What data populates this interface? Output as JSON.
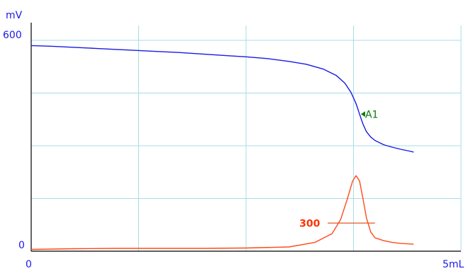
{
  "chart_data": {
    "type": "line",
    "x_unit_label": "mL",
    "y_unit_label": "mV",
    "y_top_label": "600",
    "y_bottom_label": "0",
    "x_left_label": "0",
    "x_right_label": "5mL",
    "xlim": [
      0,
      5
    ],
    "ylim": [
      0,
      600
    ],
    "grid": true,
    "colors": {
      "potential": "#1a1ae6",
      "derivative": "#ff4a1a",
      "grid": "#a8dce6",
      "marker": "#0a7a0a",
      "threshold": "#e8542a"
    },
    "series": [
      {
        "key": "potential",
        "x": [
          0,
          0.25,
          0.5,
          0.75,
          1.0,
          1.25,
          1.5,
          1.75,
          2.0,
          2.25,
          2.5,
          2.75,
          3.0,
          3.2,
          3.4,
          3.55,
          3.65,
          3.72,
          3.78,
          3.82,
          3.86,
          3.9,
          3.95,
          4.0,
          4.1,
          4.2,
          4.3,
          4.4,
          4.45
        ],
        "values": [
          585,
          583,
          580,
          577,
          574,
          571,
          568,
          565,
          561,
          557,
          553,
          548,
          540,
          532,
          518,
          500,
          478,
          452,
          420,
          390,
          362,
          340,
          325,
          315,
          303,
          296,
          290,
          285,
          282
        ]
      },
      {
        "key": "derivative",
        "x": [
          0,
          0.5,
          1.0,
          1.5,
          2.0,
          2.5,
          3.0,
          3.3,
          3.5,
          3.6,
          3.68,
          3.74,
          3.78,
          3.82,
          3.86,
          3.9,
          3.95,
          4.0,
          4.1,
          4.2,
          4.3,
          4.45
        ],
        "values": [
          5,
          7,
          8,
          8,
          8,
          9,
          12,
          25,
          50,
          90,
          150,
          200,
          215,
          200,
          150,
          95,
          55,
          38,
          30,
          25,
          22,
          20
        ]
      }
    ],
    "annotations": [
      {
        "key": "endpoint_marker",
        "text": "A1",
        "x": 3.82,
        "y": 390
      },
      {
        "key": "threshold",
        "text": "300",
        "x_start": 3.45,
        "x_end": 4.0,
        "y": 80
      }
    ]
  }
}
